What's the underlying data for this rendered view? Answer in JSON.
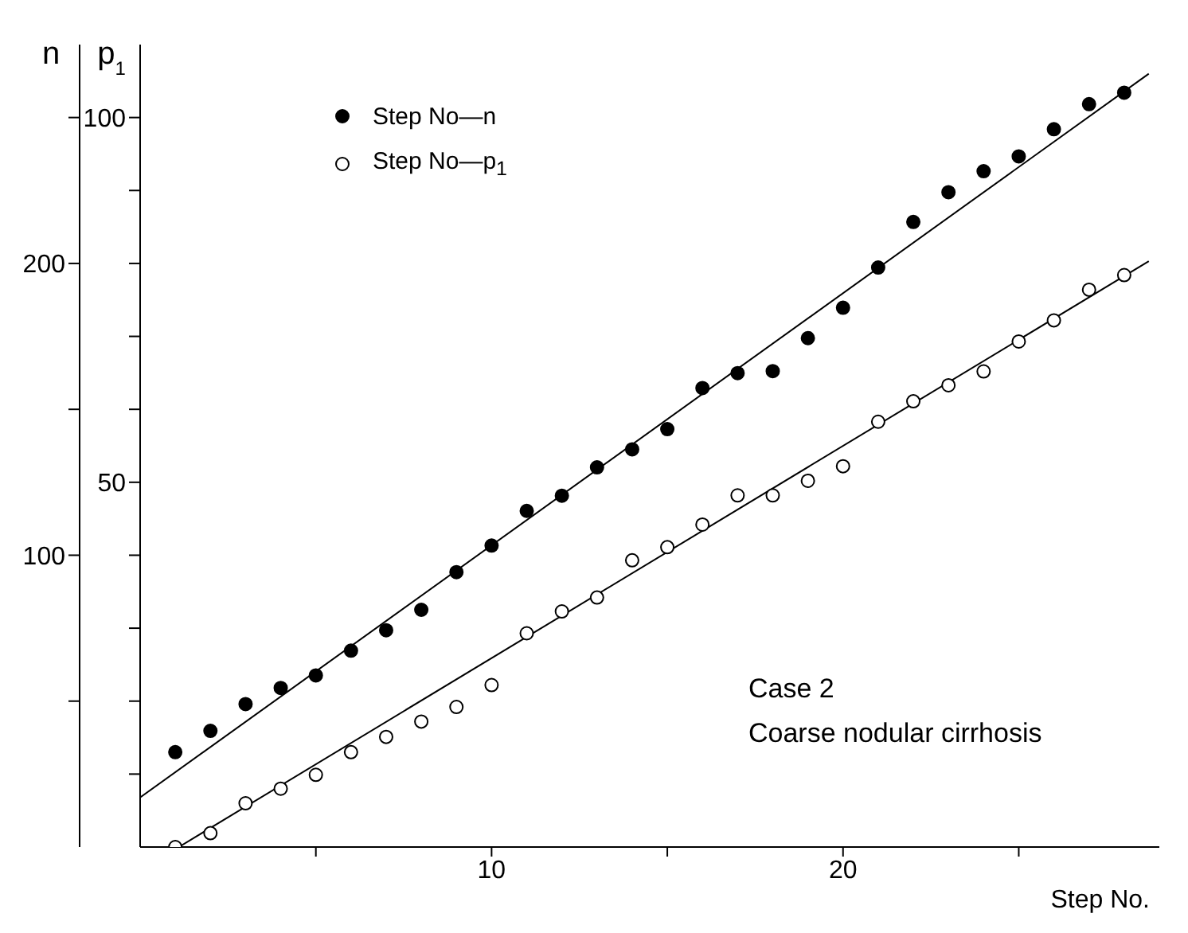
{
  "chart_data": {
    "type": "scatter",
    "xlabel": "Step No.",
    "ylabel": "n",
    "y2label": "p$_{1}$",
    "annotations": [
      "Case 2",
      "Coarse nodular cirrhosis"
    ],
    "x": [
      1,
      2,
      3,
      4,
      5,
      6,
      7,
      8,
      9,
      10,
      11,
      12,
      13,
      14,
      15,
      16,
      17,
      18,
      19,
      20,
      21,
      22,
      23,
      24,
      25,
      26,
      27,
      28
    ],
    "series": [
      {
        "name": "Step No—n",
        "color": "#000000",
        "axis": "y",
        "values": [
          32.5,
          39.8,
          49,
          54.5,
          58.8,
          67.3,
          74.3,
          81.3,
          94.2,
          103.3,
          115.2,
          120.4,
          130.1,
          136.3,
          143.2,
          157.3,
          162.4,
          163.1,
          174.4,
          184.8,
          198.6,
          214.2,
          224.4,
          231.6,
          236.7,
          246,
          254.6,
          258.5
        ]
      },
      {
        "name": "Step No—p$_{1}$",
        "color": "#000000",
        "axis": "y2",
        "values": [
          0,
          1.9,
          6,
          8,
          9.9,
          13,
          15.1,
          17.2,
          19.2,
          22.2,
          29.3,
          32.3,
          34.2,
          39.3,
          41.1,
          44.2,
          48.2,
          48.2,
          50.2,
          52.2,
          58.3,
          61.1,
          63.3,
          65.2,
          69.3,
          72.2,
          76.4,
          78.4
        ]
      },
      {
        "type": "line",
        "marker": "none",
        "color": "#000000",
        "axis": "y",
        "x": [
          0,
          28.7
        ],
        "values": [
          17,
          265
        ]
      },
      {
        "type": "line",
        "marker": "none",
        "color": "#000000",
        "axis": "y2",
        "x": [
          1.1,
          28.7
        ],
        "values": [
          0,
          80.3
        ]
      }
    ],
    "xlim": [
      0,
      29
    ],
    "xticks": [
      {
        "value": 5,
        "label": null
      },
      10,
      {
        "value": 15,
        "label": null
      },
      20,
      {
        "value": 25,
        "label": null
      }
    ],
    "ylim": [
      0,
      275
    ],
    "yticks": [
      {
        "value": 50,
        "label": null
      },
      100,
      {
        "value": 150,
        "label": null
      },
      200,
      {
        "value": 250,
        "label": null
      }
    ],
    "y2lim": [
      0,
      110
    ],
    "y2ticks": [
      {
        "value": 10,
        "label": null
      },
      {
        "value": 20,
        "label": null
      },
      {
        "value": 30,
        "label": null
      },
      {
        "value": 40,
        "label": null
      },
      50,
      {
        "value": 60,
        "label": null
      },
      {
        "value": 70,
        "label": null
      },
      {
        "value": 80,
        "label": null
      },
      {
        "value": 90,
        "label": null
      },
      100
    ],
    "marker": "circle",
    "legend": "top left",
    "grid": false
  }
}
